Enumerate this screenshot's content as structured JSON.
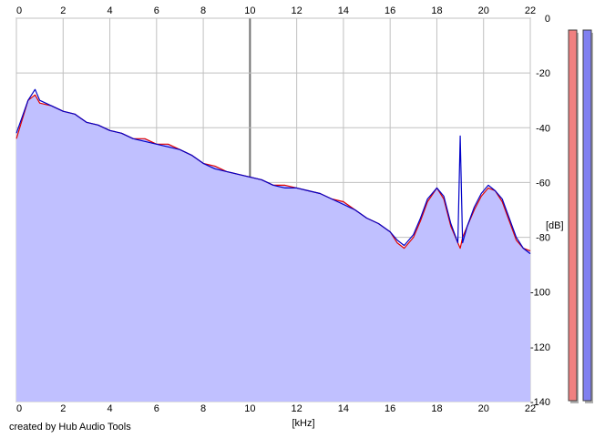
{
  "footer": {
    "credit": "created by Hub Audio Tools"
  },
  "colors": {
    "left": "#e00000",
    "right": "#0000c8",
    "fill": "#c0c0ff",
    "meter_left": "#f08080",
    "meter_right": "#8080f0"
  },
  "meters": {
    "left_level_db": -140,
    "right_level_db": -140
  },
  "chart_data": {
    "type": "line",
    "title": "",
    "xlabel": "[kHz]",
    "ylabel": "[dB]",
    "xlim": [
      0,
      22
    ],
    "ylim": [
      -140,
      0
    ],
    "x_ticks": [
      0,
      2,
      4,
      6,
      8,
      10,
      12,
      14,
      16,
      18,
      20,
      22
    ],
    "y_ticks": [
      0,
      -20,
      -40,
      -60,
      -80,
      -100,
      -120,
      -140
    ],
    "grid": true,
    "x": [
      0,
      0.5,
      0.8,
      1,
      1.5,
      2,
      2.5,
      3,
      3.5,
      4,
      4.5,
      5,
      5.5,
      6,
      6.5,
      7,
      7.5,
      8,
      8.5,
      9,
      9.5,
      10,
      10.5,
      11,
      11.5,
      12,
      12.5,
      13,
      13.5,
      14,
      14.5,
      15,
      15.5,
      16,
      16.3,
      16.6,
      17,
      17.3,
      17.6,
      18,
      18.3,
      18.6,
      18.9,
      19,
      19.1,
      19.3,
      19.6,
      19.9,
      20.2,
      20.5,
      20.8,
      21.1,
      21.4,
      21.7,
      22
    ],
    "series": [
      {
        "values": [
          -44,
          -30,
          -28,
          -31,
          -32,
          -34,
          -35,
          -38,
          -39,
          -41,
          -42,
          -44,
          -44,
          -46,
          -46,
          -48,
          -50,
          -53,
          -54,
          -56,
          -57,
          -58,
          -59,
          -61,
          -61,
          -62,
          -63,
          -64,
          -66,
          -67,
          -70,
          -73,
          -75,
          -78,
          -82,
          -84,
          -80,
          -74,
          -67,
          -62,
          -66,
          -76,
          -82,
          -84,
          -80,
          -76,
          -70,
          -65,
          -62,
          -63,
          -67,
          -74,
          -81,
          -84,
          -85
        ]
      },
      {
        "values": [
          -42,
          -30,
          -26,
          -30,
          -32,
          -34,
          -35,
          -38,
          -39,
          -41,
          -42,
          -44,
          -45,
          -46,
          -47,
          -48,
          -50,
          -53,
          -55,
          -56,
          -57,
          -58,
          -59,
          -61,
          -62,
          -62,
          -63,
          -64,
          -66,
          -68,
          -70,
          -73,
          -75,
          -78,
          -81,
          -83,
          -79,
          -73,
          -66,
          -62,
          -65,
          -75,
          -82,
          -43,
          -82,
          -76,
          -69,
          -64,
          -61,
          -63,
          -66,
          -73,
          -80,
          -84,
          -86
        ]
      }
    ]
  }
}
